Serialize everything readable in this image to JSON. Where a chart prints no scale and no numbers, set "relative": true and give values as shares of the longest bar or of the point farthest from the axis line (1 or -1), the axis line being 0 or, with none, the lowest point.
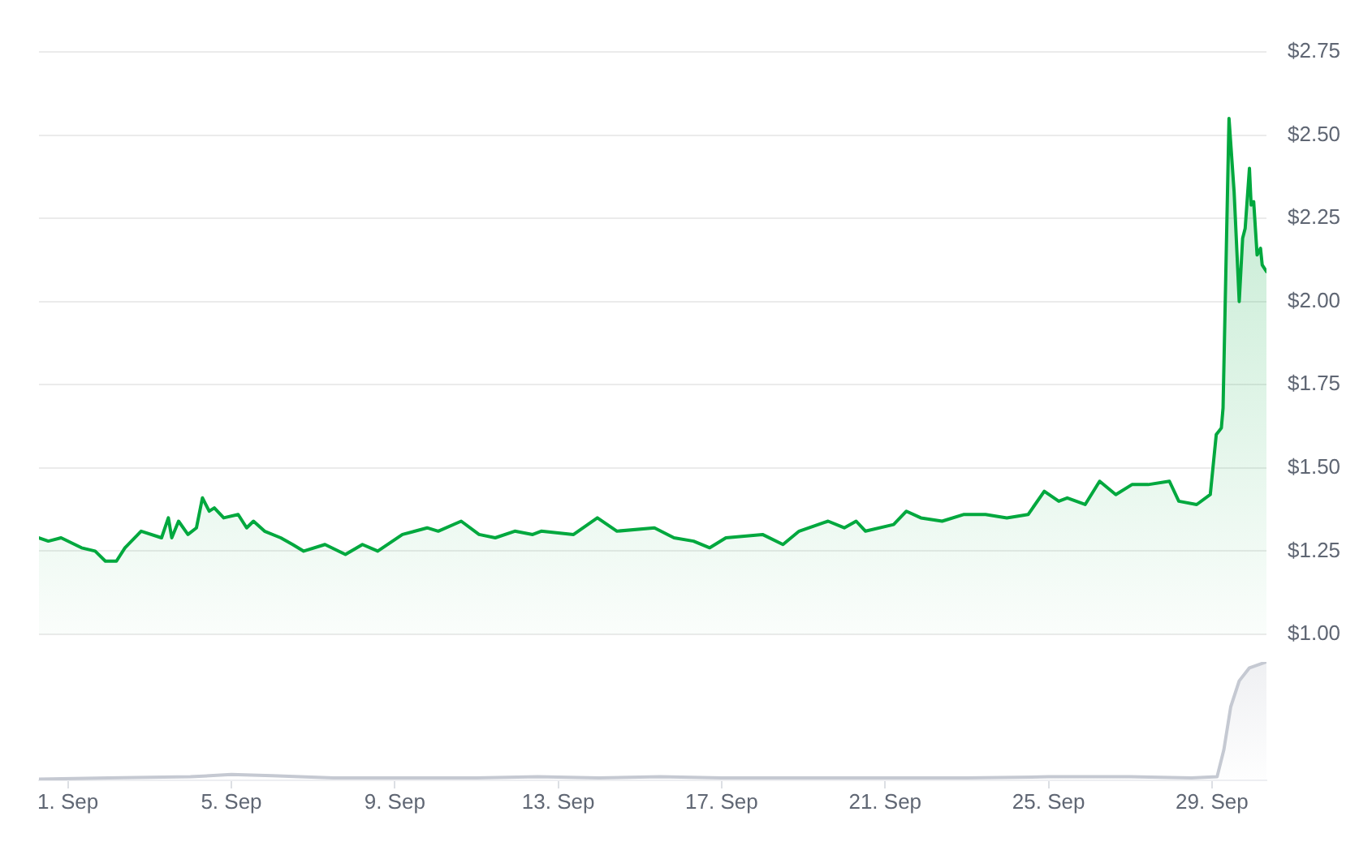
{
  "chart_data": [
    {
      "type": "area",
      "x": [
        "--08-31T07:00",
        "--08-31T12:30",
        "--08-31T20:00",
        "--09-01T08:00",
        "--09-01T16:00",
        "--09-01T22:00",
        "--09-02T04:30",
        "--09-02T09:30",
        "--09-02T19:00",
        "--09-03T07:00",
        "--09-03T11:00",
        "--09-03T13:00",
        "--09-03T17:00",
        "--09-03T22:30",
        "--09-04T03:30",
        "--09-04T07:00",
        "--09-04T11:00",
        "--09-04T14:00",
        "--09-04T19:30",
        "--09-05T04:00",
        "--09-05T09:00",
        "--09-05T13:00",
        "--09-05T19:30",
        "--09-06T05:00",
        "--09-06T12:00",
        "--09-06T18:30",
        "--09-07T07:00",
        "--09-07T19:00",
        "--09-08T05:00",
        "--09-08T14:00",
        "--09-09T04:30",
        "--09-09T19:00",
        "--09-10T01:30",
        "--09-10T15:00",
        "--09-11T01:30",
        "--09-11T11:00",
        "--09-11T22:30",
        "--09-12T09:00",
        "--09-12T14:00",
        "--09-13T09:00",
        "--09-13T23:00",
        "--09-14T10:30",
        "--09-15T08:30",
        "--09-15T20:00",
        "--09-16T07:30",
        "--09-16T17:00",
        "--09-17T02:30",
        "--09-18T00:00",
        "--09-18T12:00",
        "--09-18T21:30",
        "--09-19T14:30",
        "--09-20T00:00",
        "--09-20T07:00",
        "--09-20T12:30",
        "--09-21T05:00",
        "--09-21T12:30",
        "--09-21T21:00",
        "--09-22T09:30",
        "--09-22T22:00",
        "--09-23T11:00",
        "--09-23T23:30",
        "--09-24T12:00",
        "--09-24T21:30",
        "--09-25T06:00",
        "--09-25T11:00",
        "--09-25T21:30",
        "--09-26T06:00",
        "--09-26T15:30",
        "--09-27T01:00",
        "--09-27T10:30",
        "--09-27T23:00",
        "--09-28T04:30",
        "--09-28T15:00",
        "--09-28T23:00",
        "--09-29T02:30",
        "--09-29T05:30",
        "--09-29T06:30",
        "--09-29T10:00",
        "--09-29T13:00",
        "--09-29T16:00",
        "--09-29T18:00",
        "--09-29T19:30",
        "--09-29T22:00",
        "--09-29T23:00",
        "--09-30T00:30",
        "--09-30T02:30",
        "--09-30T04:30",
        "--09-30T05:30",
        "--09-30T08:00"
      ],
      "series": [
        {
          "color": "#00a83e",
          "values": [
            1.29,
            1.28,
            1.29,
            1.26,
            1.25,
            1.22,
            1.22,
            1.26,
            1.31,
            1.29,
            1.35,
            1.29,
            1.34,
            1.3,
            1.32,
            1.41,
            1.37,
            1.38,
            1.35,
            1.36,
            1.32,
            1.34,
            1.31,
            1.29,
            1.27,
            1.25,
            1.27,
            1.24,
            1.27,
            1.25,
            1.3,
            1.32,
            1.31,
            1.34,
            1.3,
            1.29,
            1.31,
            1.3,
            1.31,
            1.3,
            1.35,
            1.31,
            1.32,
            1.29,
            1.28,
            1.26,
            1.29,
            1.3,
            1.27,
            1.31,
            1.34,
            1.32,
            1.34,
            1.31,
            1.33,
            1.37,
            1.35,
            1.34,
            1.36,
            1.36,
            1.35,
            1.36,
            1.43,
            1.4,
            1.41,
            1.39,
            1.46,
            1.42,
            1.45,
            1.45,
            1.46,
            1.4,
            1.39,
            1.42,
            1.6,
            1.62,
            1.68,
            2.55,
            2.33,
            2.0,
            2.19,
            2.22,
            2.4,
            2.29,
            2.3,
            2.14,
            2.16,
            2.11,
            2.09
          ]
        }
      ],
      "xlim": [
        "--08-31T07:00",
        "--09-30T08:00"
      ],
      "ylim": [
        1,
        2.75
      ],
      "yticks": [
        {
          "value": 1,
          "label": "$1.00"
        },
        {
          "value": 1.25,
          "label": "$1.25"
        },
        {
          "value": 1.5,
          "label": "$1.50"
        },
        {
          "value": 1.75,
          "label": "$1.75"
        },
        {
          "value": 2,
          "label": "$2.00"
        },
        {
          "value": 2.25,
          "label": "$2.25"
        },
        {
          "value": 2.5,
          "label": "$2.50"
        },
        {
          "value": 2.75,
          "label": "$2.75"
        }
      ],
      "grid": "y",
      "tick_labels": "y"
    },
    {
      "type": "area",
      "relative": true,
      "x": [
        "--08-31T07:00",
        "--09-02T00:00",
        "--09-04T00:00",
        "--09-05T00:00",
        "--09-06T00:00",
        "--09-07T12:00",
        "--09-09T00:00",
        "--09-11T00:00",
        "--09-12T12:00",
        "--09-14T00:00",
        "--09-15T12:00",
        "--09-17T00:00",
        "--09-19T00:00",
        "--09-21T00:00",
        "--09-23T00:00",
        "--09-25T00:00",
        "--09-27T00:00",
        "--09-28T12:00",
        "--09-29T03:00",
        "--09-29T07:00",
        "--09-29T11:00",
        "--09-29T16:00",
        "--09-29T22:00",
        "--09-30T08:00"
      ],
      "series": [
        {
          "color": "#c5c9d2",
          "values": [
            0.01,
            0.02,
            0.03,
            0.05,
            0.04,
            0.02,
            0.02,
            0.02,
            0.03,
            0.02,
            0.03,
            0.02,
            0.02,
            0.02,
            0.02,
            0.03,
            0.03,
            0.02,
            0.03,
            0.26,
            0.62,
            0.84,
            0.95,
            1
          ]
        }
      ],
      "xlim": [
        "--08-31T07:00",
        "--09-30T08:00"
      ],
      "xticks": [
        {
          "value": "--09-01",
          "label": "1. Sep"
        },
        {
          "value": "--09-05",
          "label": "5. Sep"
        },
        {
          "value": "--09-09",
          "label": "9. Sep"
        },
        {
          "value": "--09-13",
          "label": "13. Sep"
        },
        {
          "value": "--09-17",
          "label": "17. Sep"
        },
        {
          "value": "--09-21",
          "label": "21. Sep"
        },
        {
          "value": "--09-25",
          "label": "25. Sep"
        },
        {
          "value": "--09-29",
          "label": "29. Sep"
        }
      ],
      "tick_labels": "x"
    }
  ]
}
